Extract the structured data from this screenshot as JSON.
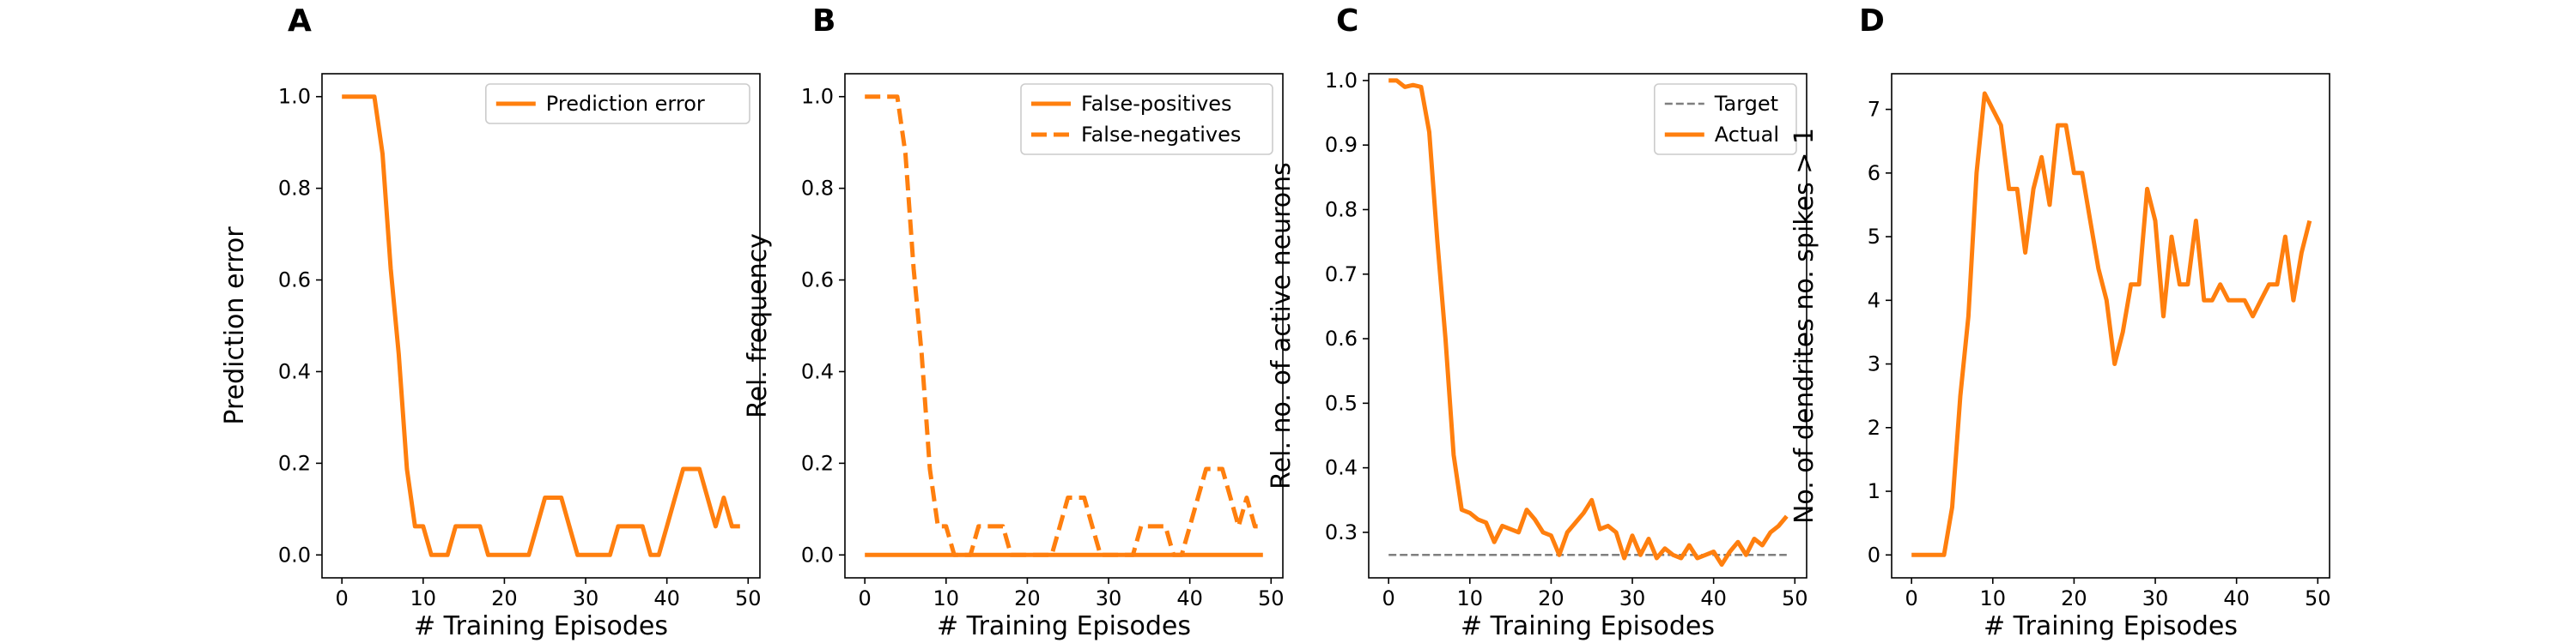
{
  "colors": {
    "series": "#ff7f0e",
    "target": "#7f7f7f"
  },
  "chart_data": [
    {
      "panel": "A",
      "type": "line",
      "xlabel": "# Training Episodes",
      "ylabel": "Prediction error",
      "xlim": [
        -2.45,
        51.45
      ],
      "ylim": [
        -0.05,
        1.05
      ],
      "xticks": [
        0,
        10,
        20,
        30,
        40,
        50
      ],
      "yticks": [
        0.0,
        0.2,
        0.4,
        0.6,
        0.8,
        1.0
      ],
      "ytick_labels": [
        "0.0",
        "0.2",
        "0.4",
        "0.6",
        "0.8",
        "1.0"
      ],
      "legend_position": "top-right",
      "series": [
        {
          "name": "Prediction error",
          "style": "solid",
          "x": [
            0,
            1,
            2,
            3,
            4,
            5,
            6,
            7,
            8,
            9,
            10,
            11,
            12,
            13,
            14,
            15,
            16,
            17,
            18,
            19,
            20,
            21,
            22,
            23,
            24,
            25,
            26,
            27,
            28,
            29,
            30,
            31,
            32,
            33,
            34,
            35,
            36,
            37,
            38,
            39,
            40,
            41,
            42,
            43,
            44,
            45,
            46,
            47,
            48,
            49
          ],
          "y": [
            1,
            1,
            1,
            1,
            1,
            0.875,
            0.625,
            0.4375,
            0.1875,
            0.0625,
            0.0625,
            0,
            0,
            0,
            0.0625,
            0.0625,
            0.0625,
            0.0625,
            0,
            0,
            0,
            0,
            0,
            0,
            0.0625,
            0.125,
            0.125,
            0.125,
            0.0625,
            0,
            0,
            0,
            0,
            0,
            0.0625,
            0.0625,
            0.0625,
            0.0625,
            0,
            0,
            0.0625,
            0.125,
            0.1875,
            0.1875,
            0.1875,
            0.125,
            0.0625,
            0.125,
            0.0625,
            0.0625
          ]
        }
      ]
    },
    {
      "panel": "B",
      "type": "line",
      "xlabel": "# Training Episodes",
      "ylabel": "Rel. frequency",
      "xlim": [
        -2.45,
        51.45
      ],
      "ylim": [
        -0.05,
        1.05
      ],
      "xticks": [
        0,
        10,
        20,
        30,
        40,
        50
      ],
      "yticks": [
        0.0,
        0.2,
        0.4,
        0.6,
        0.8,
        1.0
      ],
      "ytick_labels": [
        "0.0",
        "0.2",
        "0.4",
        "0.6",
        "0.8",
        "1.0"
      ],
      "legend_position": "top-right",
      "series": [
        {
          "name": "False-positives",
          "style": "solid",
          "x": [
            0,
            49
          ],
          "y": [
            0,
            0
          ]
        },
        {
          "name": "False-negatives",
          "style": "dashed",
          "x": [
            0,
            1,
            2,
            3,
            4,
            5,
            6,
            7,
            8,
            9,
            10,
            11,
            12,
            13,
            14,
            15,
            16,
            17,
            18,
            19,
            20,
            21,
            22,
            23,
            24,
            25,
            26,
            27,
            28,
            29,
            30,
            31,
            32,
            33,
            34,
            35,
            36,
            37,
            38,
            39,
            40,
            41,
            42,
            43,
            44,
            45,
            46,
            47,
            48,
            49
          ],
          "y": [
            1,
            1,
            1,
            1,
            1,
            0.875,
            0.625,
            0.4375,
            0.1875,
            0.0625,
            0.0625,
            0,
            0,
            0,
            0.0625,
            0.0625,
            0.0625,
            0.0625,
            0,
            0,
            0,
            0,
            0,
            0,
            0.0625,
            0.125,
            0.125,
            0.125,
            0.0625,
            0,
            0,
            0,
            0,
            0,
            0.0625,
            0.0625,
            0.0625,
            0.0625,
            0,
            0,
            0.0625,
            0.125,
            0.1875,
            0.1875,
            0.1875,
            0.125,
            0.0625,
            0.125,
            0.0625,
            0.0625
          ]
        }
      ]
    },
    {
      "panel": "C",
      "type": "line",
      "xlabel": "# Training Episodes",
      "ylabel": "Rel. no. of active neurons",
      "xlim": [
        -2.45,
        51.45
      ],
      "ylim": [
        0.2295,
        1.0105
      ],
      "xticks": [
        0,
        10,
        20,
        30,
        40,
        50
      ],
      "yticks": [
        0.3,
        0.4,
        0.5,
        0.6,
        0.7,
        0.8,
        0.9,
        1.0
      ],
      "ytick_labels": [
        "0.3",
        "0.4",
        "0.5",
        "0.6",
        "0.7",
        "0.8",
        "0.9",
        "1.0"
      ],
      "legend_position": "top-right",
      "series": [
        {
          "name": "Target",
          "style": "dashed-thin",
          "x": [
            0,
            49
          ],
          "y": [
            0.265,
            0.265
          ]
        },
        {
          "name": "Actual",
          "style": "solid",
          "x": [
            0,
            1,
            2,
            3,
            4,
            5,
            6,
            7,
            8,
            9,
            10,
            11,
            12,
            13,
            14,
            15,
            16,
            17,
            18,
            19,
            20,
            21,
            22,
            23,
            24,
            25,
            26,
            27,
            28,
            29,
            30,
            31,
            32,
            33,
            34,
            35,
            36,
            37,
            38,
            39,
            40,
            41,
            42,
            43,
            44,
            45,
            46,
            47,
            48,
            49
          ],
          "y": [
            1.0,
            1.0,
            0.99,
            0.993,
            0.99,
            0.92,
            0.75,
            0.6,
            0.42,
            0.335,
            0.33,
            0.32,
            0.315,
            0.285,
            0.31,
            0.305,
            0.3,
            0.335,
            0.32,
            0.3,
            0.295,
            0.265,
            0.3,
            0.315,
            0.33,
            0.35,
            0.305,
            0.31,
            0.3,
            0.26,
            0.295,
            0.265,
            0.29,
            0.26,
            0.275,
            0.265,
            0.26,
            0.28,
            0.26,
            0.265,
            0.27,
            0.25,
            0.27,
            0.285,
            0.265,
            0.29,
            0.28,
            0.3,
            0.31,
            0.325
          ]
        }
      ]
    },
    {
      "panel": "D",
      "type": "line",
      "xlabel": "# Training Episodes",
      "ylabel": "No. of dendrites no. spikes > 1",
      "xlim": [
        -2.45,
        51.45
      ],
      "ylim": [
        -0.36,
        7.56
      ],
      "xticks": [
        0,
        10,
        20,
        30,
        40,
        50
      ],
      "yticks": [
        0,
        1,
        2,
        3,
        4,
        5,
        6,
        7
      ],
      "ytick_labels": [
        "0",
        "1",
        "2",
        "3",
        "4",
        "5",
        "6",
        "7"
      ],
      "series": [
        {
          "style": "solid",
          "x": [
            0,
            1,
            2,
            3,
            4,
            5,
            6,
            7,
            8,
            9,
            10,
            11,
            12,
            13,
            14,
            15,
            16,
            17,
            18,
            19,
            20,
            21,
            22,
            23,
            24,
            25,
            26,
            27,
            28,
            29,
            30,
            31,
            32,
            33,
            34,
            35,
            36,
            37,
            38,
            39,
            40,
            41,
            42,
            43,
            44,
            45,
            46,
            47,
            48,
            49
          ],
          "y": [
            0,
            0,
            0,
            0,
            0,
            0.75,
            2.5,
            3.75,
            6,
            7.25,
            7,
            6.75,
            5.75,
            5.75,
            4.75,
            5.75,
            6.25,
            5.5,
            6.75,
            6.75,
            6,
            6,
            5.25,
            4.5,
            4,
            3,
            3.5,
            4.25,
            4.25,
            5.75,
            5.25,
            3.75,
            5,
            4.25,
            4.25,
            5.25,
            4,
            4,
            4.25,
            4,
            4,
            4,
            3.75,
            4,
            4.25,
            4.25,
            5,
            4,
            4.75,
            5.25
          ]
        }
      ]
    }
  ]
}
